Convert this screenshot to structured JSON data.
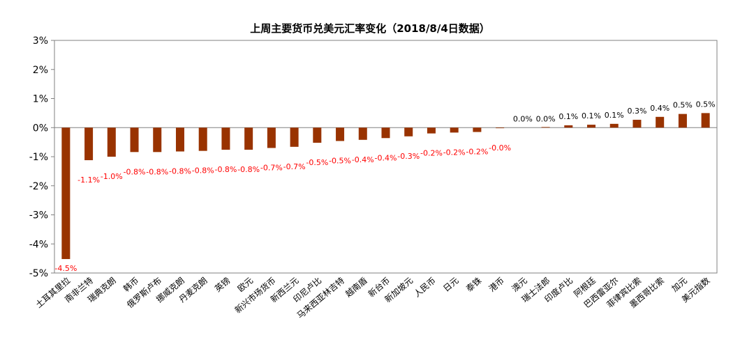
{
  "chart_data": {
    "type": "bar",
    "title": "上周主要货币兑美元汇率变化（2018/8/4日数据）",
    "xlabel": "",
    "ylabel": "",
    "ylim": [
      -5,
      3
    ],
    "yticks": [
      "3%",
      "2%",
      "1%",
      "0%",
      "-1%",
      "-2%",
      "-3%",
      "-4%",
      "-5%"
    ],
    "ytick_values": [
      3,
      2,
      1,
      0,
      -1,
      -2,
      -3,
      -4,
      -5
    ],
    "grid": false,
    "legend": "none",
    "categories": [
      "土耳其里拉",
      "南非兰特",
      "瑞典克朗",
      "韩币",
      "俄罗斯卢布",
      "挪威克朗",
      "丹麦克朗",
      "英镑",
      "欧元",
      "新兴市场货币",
      "新西兰元",
      "印尼卢比",
      "马来西亚林吉特",
      "越南盾",
      "新台币",
      "新加坡元",
      "人民币",
      "日元",
      "泰铢",
      "港币",
      "澳元",
      "瑞士法郎",
      "印度卢比",
      "阿根廷",
      "巴西雷亚尔",
      "菲律宾比索",
      "墨西哥比索",
      "加元",
      "美元指数"
    ],
    "values": [
      -4.52,
      -1.12,
      -1.0,
      -0.84,
      -0.84,
      -0.82,
      -0.8,
      -0.76,
      -0.76,
      -0.7,
      -0.66,
      -0.52,
      -0.46,
      -0.42,
      -0.36,
      -0.3,
      -0.2,
      -0.17,
      -0.15,
      -0.02,
      0.0,
      0.02,
      0.08,
      0.1,
      0.13,
      0.27,
      0.37,
      0.47,
      0.5
    ],
    "data_labels": [
      "-4.5%",
      "-1.1%",
      "-1.0%",
      "-0.8%",
      "-0.8%",
      "-0.8%",
      "-0.8%",
      "-0.8%",
      "-0.8%",
      "-0.7%",
      "-0.7%",
      "-0.5%",
      "-0.5%",
      "-0.4%",
      "-0.4%",
      "-0.3%",
      "-0.2%",
      "-0.2%",
      "-0.2%",
      "-0.0%",
      "0.0%",
      "0.0%",
      "0.1%",
      "0.1%",
      "0.1%",
      "0.3%",
      "0.4%",
      "0.5%",
      "0.5%"
    ],
    "colors": {
      "bar": "#993300",
      "negative_label": "#ff0000",
      "positive_label": "#000000",
      "axis": "#808080"
    }
  }
}
